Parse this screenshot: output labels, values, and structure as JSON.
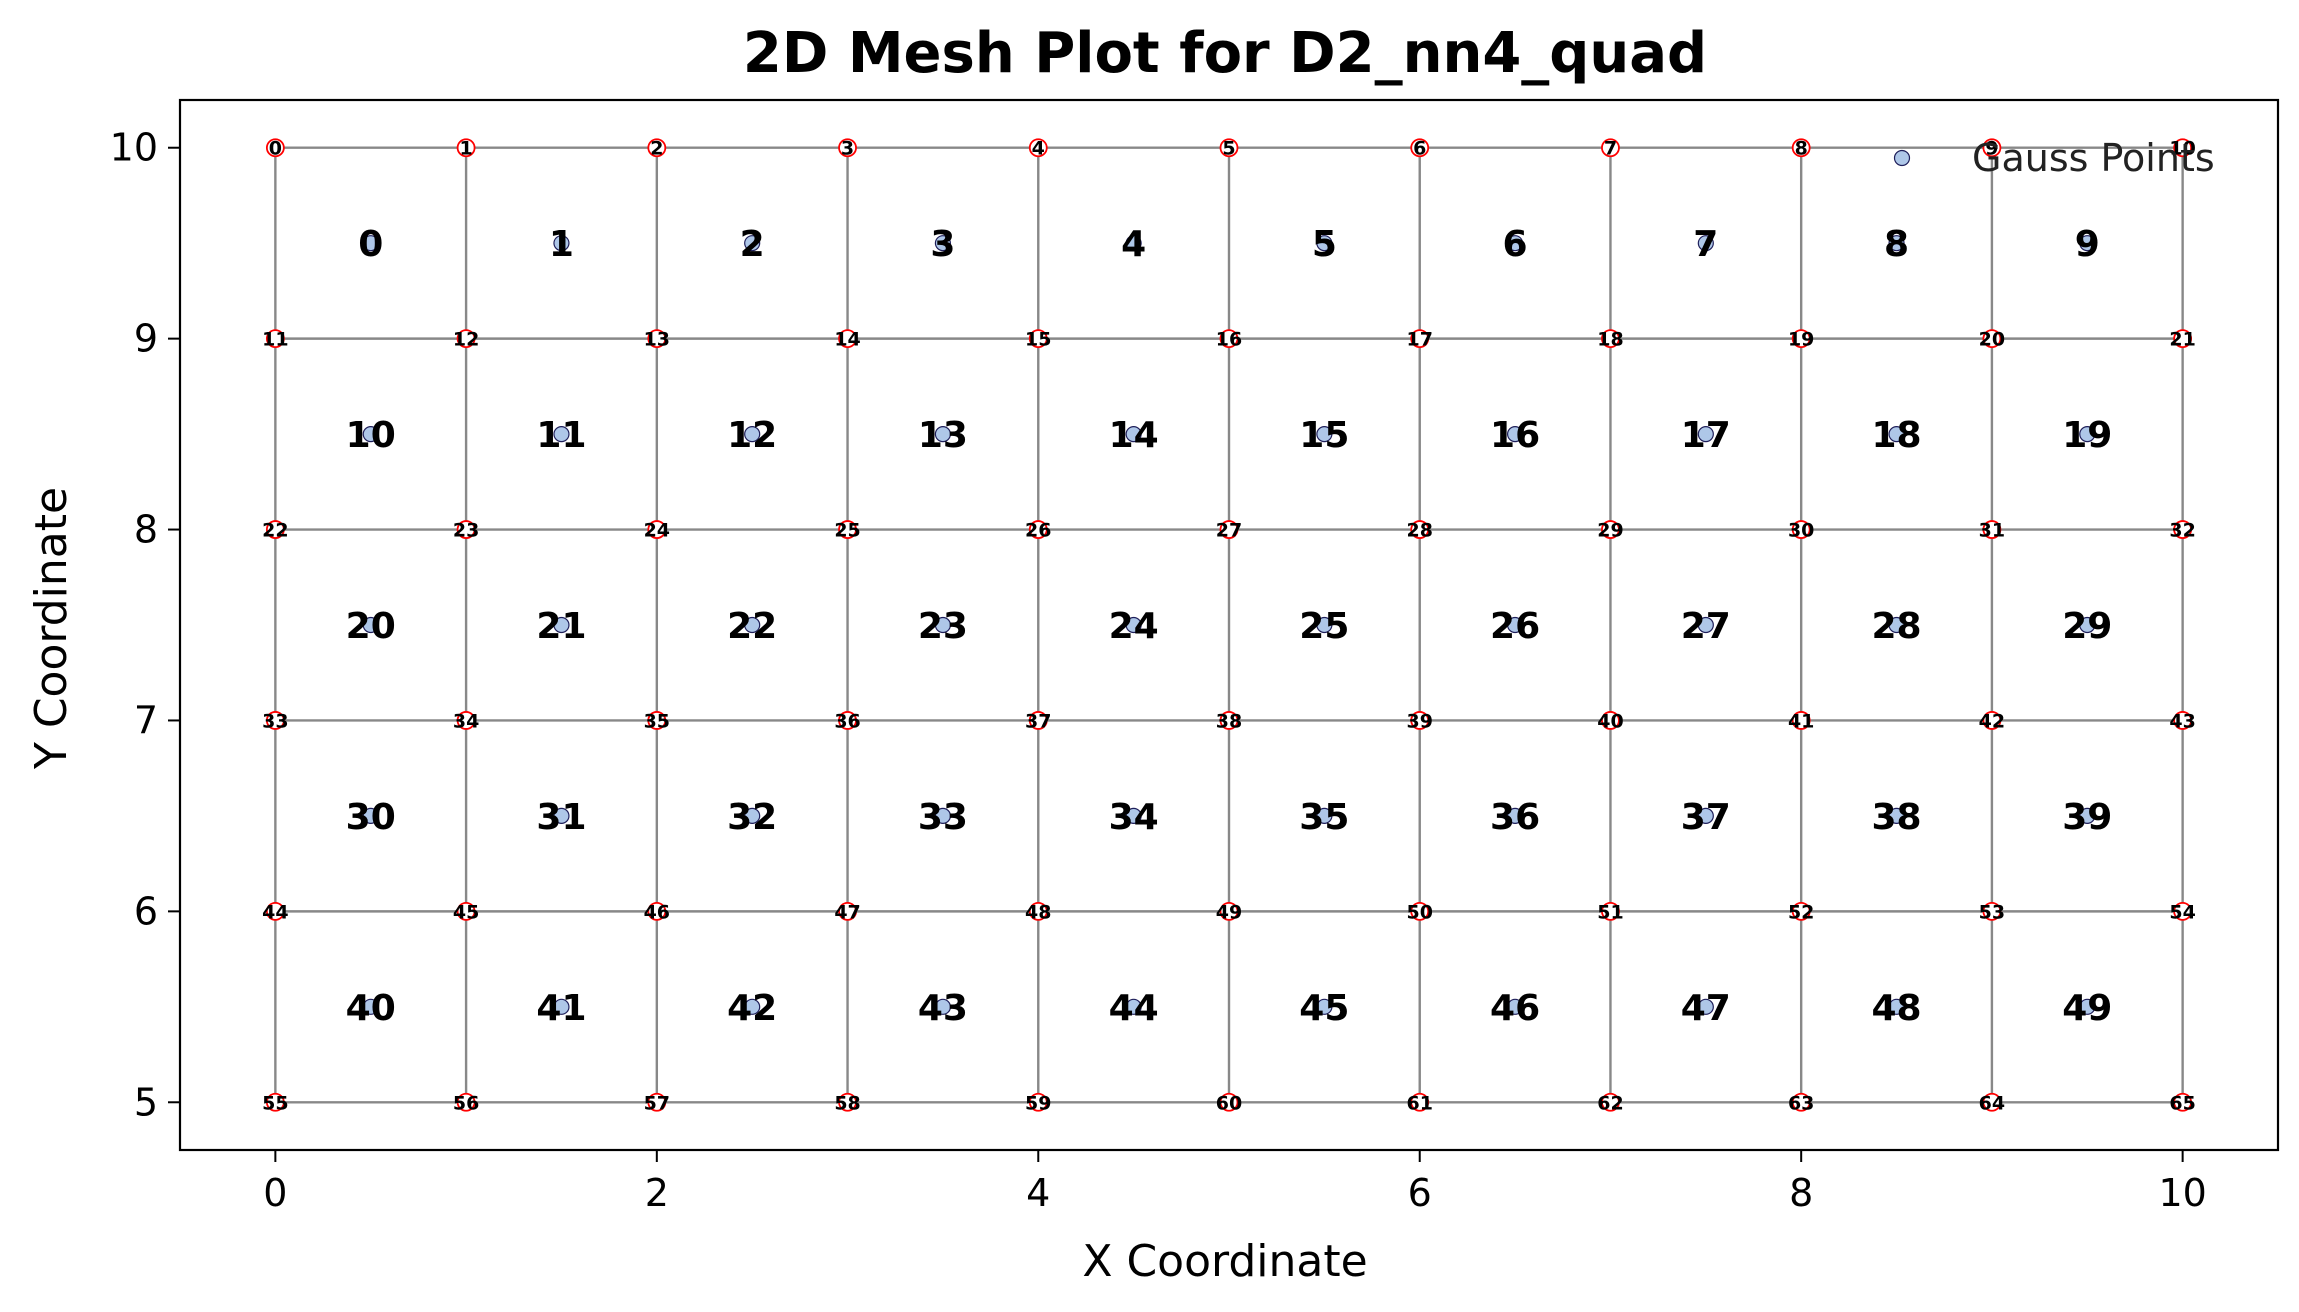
{
  "chart_data": {
    "type": "scatter",
    "title": "2D Mesh Plot for D2_nn4_quad",
    "xlabel": "X Coordinate",
    "ylabel": "Y Coordinate",
    "xlim": [
      -0.5,
      10.5
    ],
    "ylim": [
      4.75,
      10.25
    ],
    "xticks": [
      0,
      2,
      4,
      6,
      8,
      10
    ],
    "yticks": [
      5,
      6,
      7,
      8,
      9,
      10
    ],
    "mesh": {
      "x_min": 0,
      "x_max": 10,
      "nx": 10,
      "y_min": 5,
      "y_max": 10,
      "ny": 5,
      "node_numbering": "row-major from top-left (y=10) left to right",
      "element_numbering": "row-major from top-left left to right"
    },
    "series": [
      {
        "name": "Gauss Points",
        "marker": "circle",
        "color": "#aec7e8"
      }
    ],
    "legend": {
      "position": "top-right",
      "entries": [
        "Gauss Points"
      ]
    },
    "colors": {
      "mesh_lines": "#888888",
      "node_marker_edge": "#ff0000",
      "gauss_fill": "#aec7e8",
      "gauss_edge": "#1f1f5a"
    },
    "grid": false
  }
}
